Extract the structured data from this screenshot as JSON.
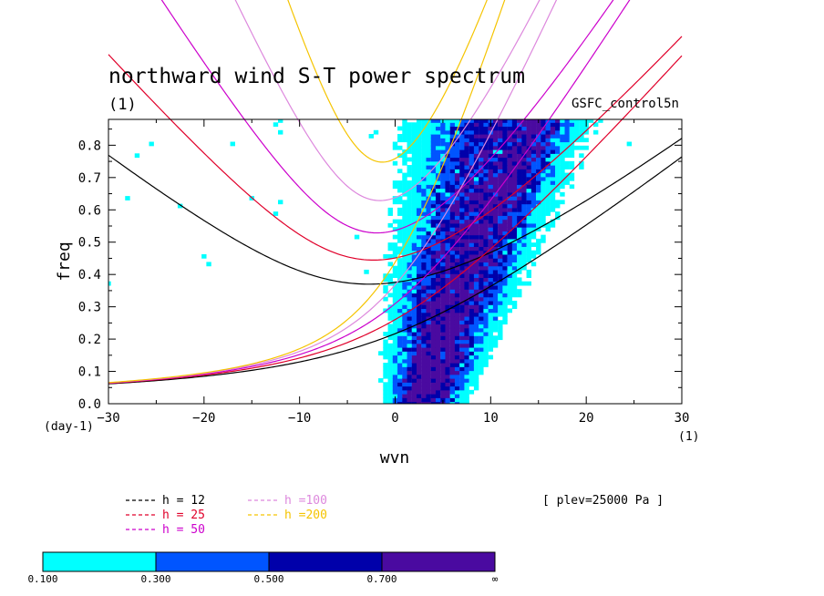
{
  "chart_data": {
    "type": "heatmap",
    "title": "northward wind S-T power spectrum",
    "title_units": "(1)",
    "case_label": "GSFC_control5n",
    "xlabel": "wvn",
    "ylabel": "freq",
    "x_units": "(1)",
    "y_units": "(day-1)",
    "xlim": [
      -30,
      30
    ],
    "ylim": [
      0,
      0.88
    ],
    "x_ticks": [
      -30,
      -20,
      -10,
      0,
      10,
      20,
      30
    ],
    "x_tick_labels": [
      "−30",
      "−20",
      "−10",
      "0",
      "10",
      "20",
      "30"
    ],
    "y_ticks": [
      0.0,
      0.1,
      0.2,
      0.3,
      0.4,
      0.5,
      0.6,
      0.7,
      0.8
    ],
    "y_tick_labels": [
      "0.0",
      "0.1",
      "0.2",
      "0.3",
      "0.4",
      "0.5",
      "0.6",
      "0.7",
      "0.8"
    ],
    "annotation": "[ plev=25000 Pa ]",
    "dispersion_curves": [
      {
        "label": "h = 12",
        "color": "#000000",
        "h": 12
      },
      {
        "label": "h = 25",
        "color": "#e0002a",
        "h": 25
      },
      {
        "label": "h = 50",
        "color": "#cc00cc",
        "h": 50
      },
      {
        "label": "h =100",
        "color": "#dd88dd",
        "h": 100
      },
      {
        "label": "h =200",
        "color": "#f5c400",
        "h": 200
      }
    ],
    "colorbar": {
      "levels": [
        "0.100",
        "0.300",
        "0.500",
        "0.700",
        "∞"
      ],
      "colors": [
        "#00ffff",
        "#0055ff",
        "#0000aa",
        "#4a0aa0"
      ]
    }
  }
}
